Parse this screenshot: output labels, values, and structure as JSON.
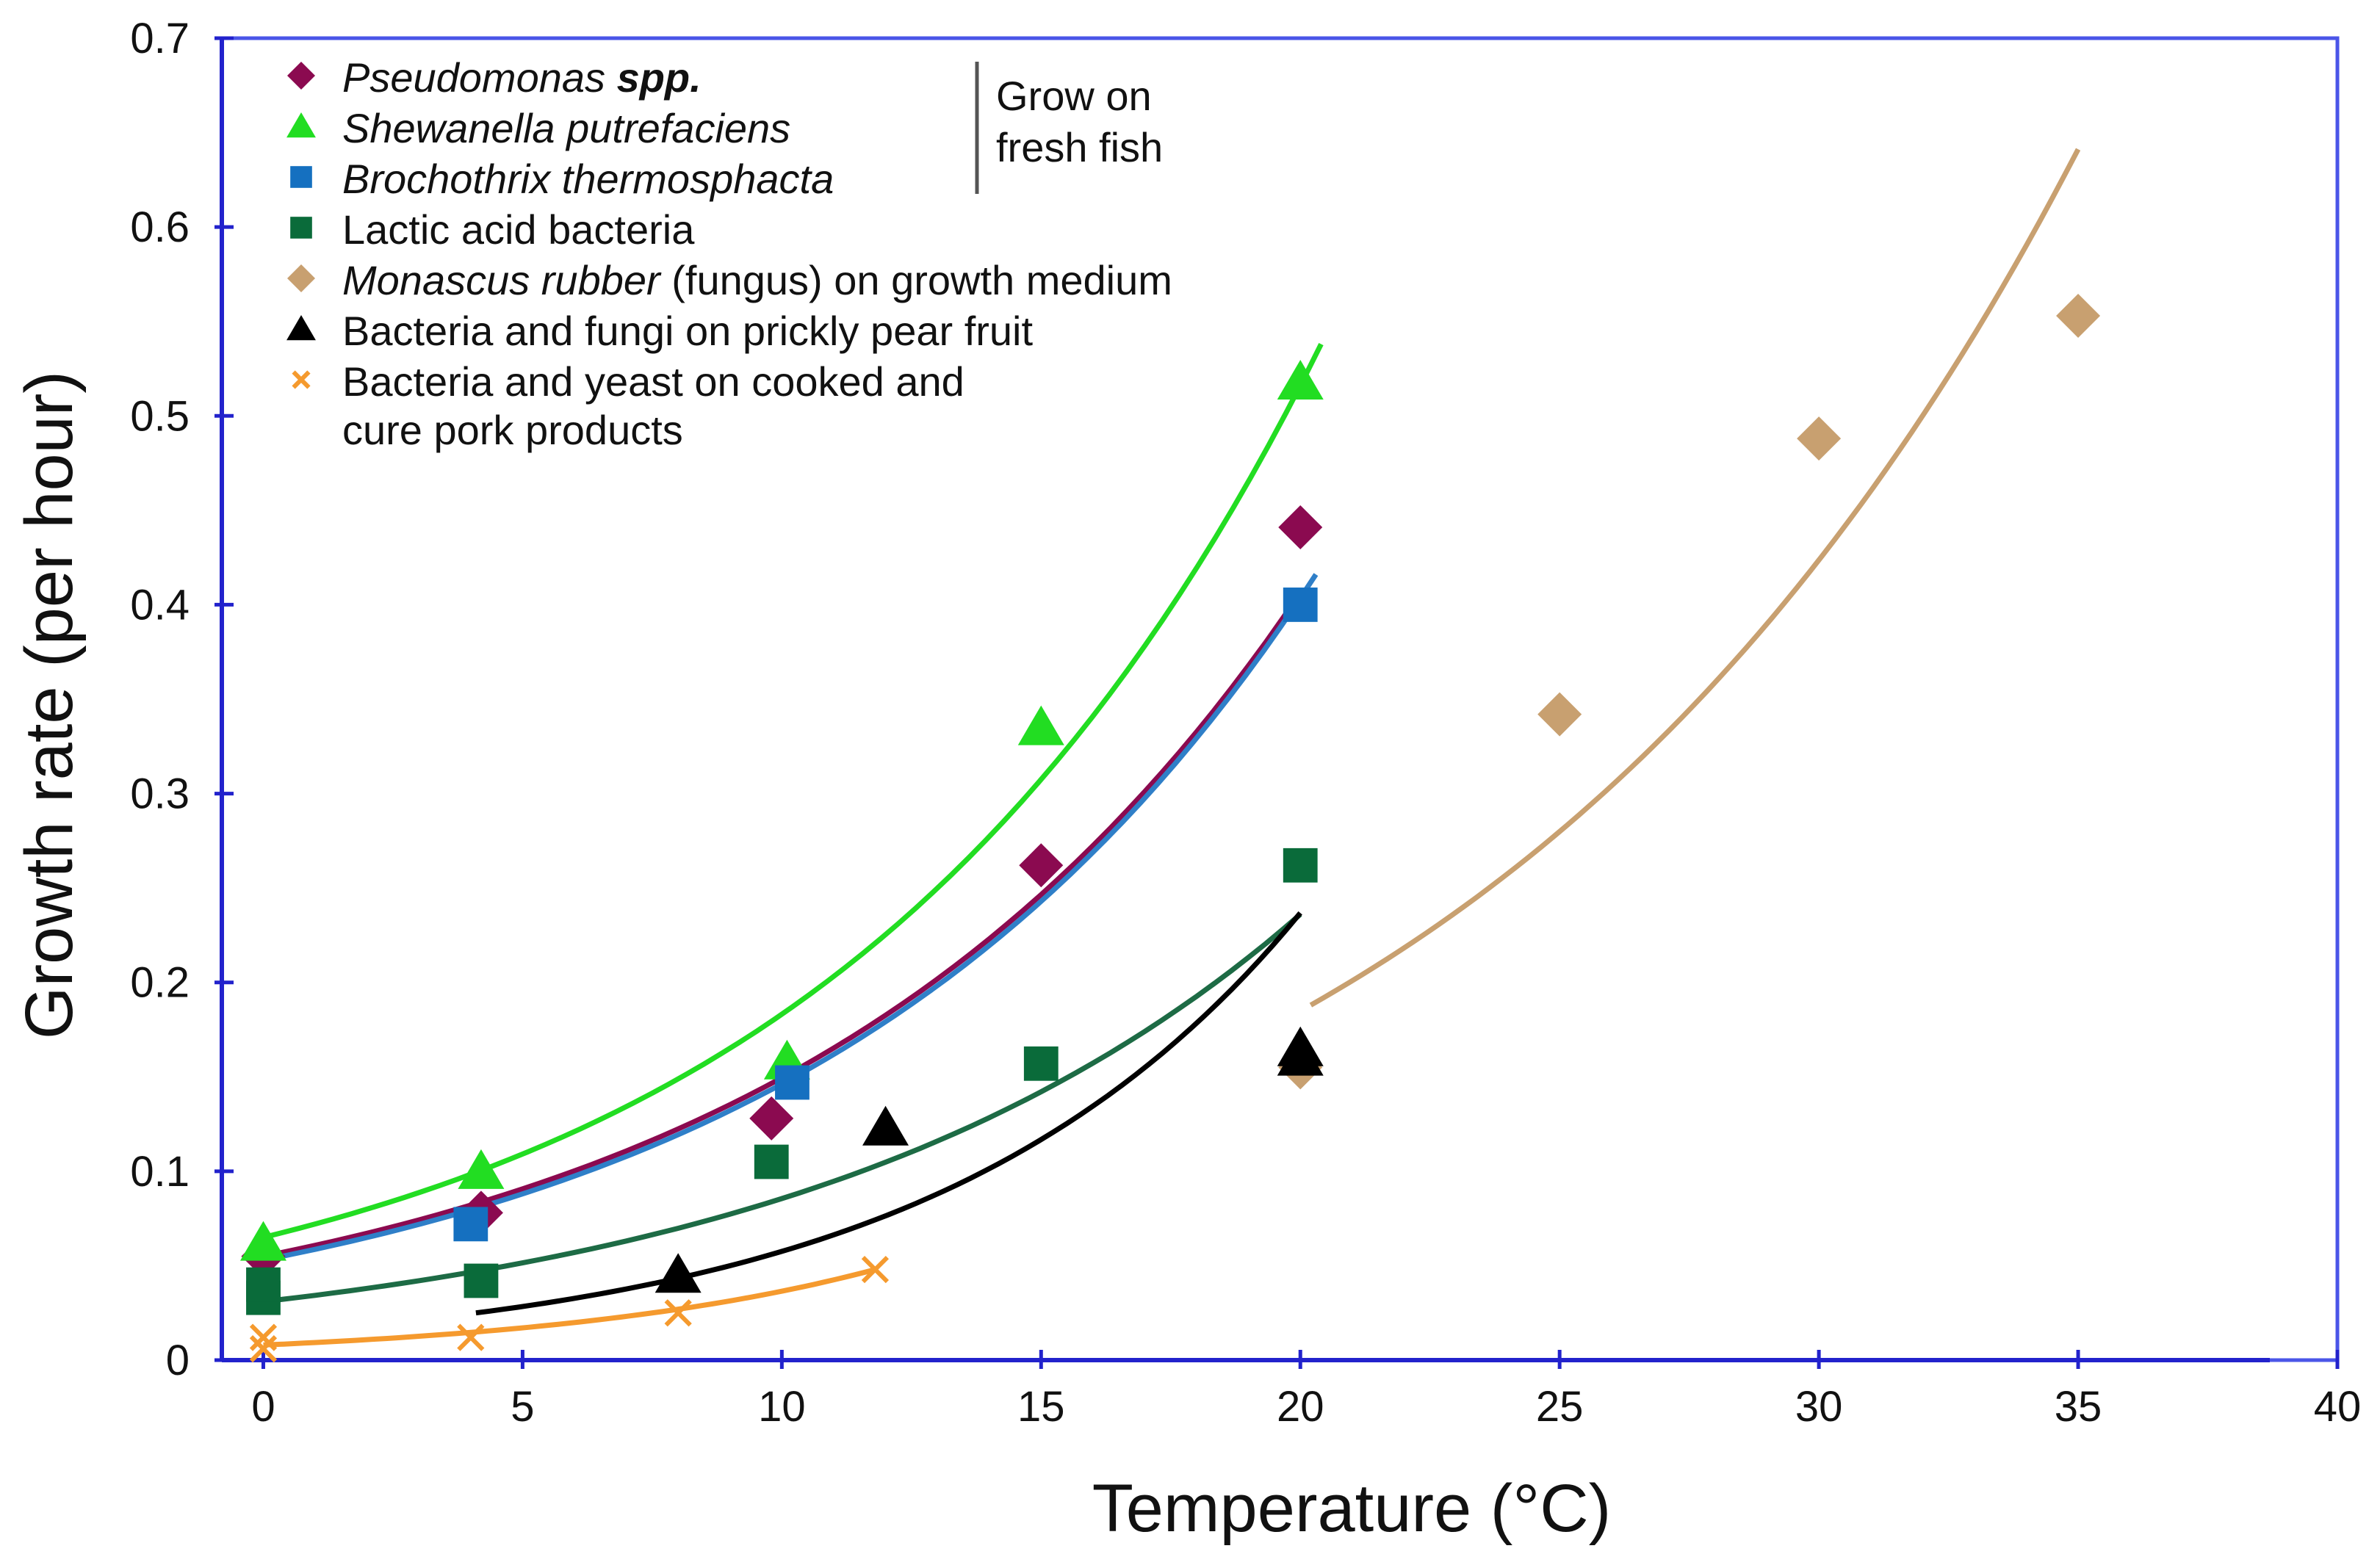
{
  "chart_data": {
    "type": "scatter",
    "xlabel": "Temperature (°C)",
    "ylabel": "Growth rate (per hour)",
    "xlim": [
      -0.8,
      40
    ],
    "ylim": [
      0,
      0.7
    ],
    "xticks": [
      "0",
      "5",
      "10",
      "15",
      "20",
      "25",
      "30",
      "35",
      "40"
    ],
    "xtick_values": [
      0,
      5,
      10,
      15,
      20,
      25,
      30,
      35,
      40
    ],
    "yticks": [
      "0",
      "0.1",
      "0.2",
      "0.3",
      "0.4",
      "0.5",
      "0.6",
      "0.7"
    ],
    "ytick_values": [
      0,
      0.1,
      0.2,
      0.3,
      0.4,
      0.5,
      0.6,
      0.7
    ],
    "grid": false,
    "legend_position": "top-left",
    "legend_group_note": [
      "Grow on",
      "fresh fish"
    ],
    "series": [
      {
        "id": "pseudomonas",
        "name_parts": [
          {
            "t": "Pseudomonas ",
            "s": "it"
          },
          {
            "t": "spp.",
            "s": "bi"
          }
        ],
        "marker": "diamond",
        "color": "#8b0a50",
        "x": [
          0,
          4.2,
          9.8,
          15,
          20
        ],
        "y": [
          0.055,
          0.078,
          0.128,
          0.262,
          0.441
        ],
        "fit": {
          "from": 0,
          "to": 20,
          "a": 0.055,
          "b": 0.1
        },
        "fit_color": "#8b0a50"
      },
      {
        "id": "shewanella",
        "name_parts": [
          {
            "t": "Shewanella putrefaciens",
            "s": "it"
          }
        ],
        "marker": "triangle",
        "color": "#22dd22",
        "x": [
          0,
          4.2,
          10.1,
          15,
          20
        ],
        "y": [
          0.062,
          0.1,
          0.158,
          0.335,
          0.518
        ],
        "fit": {
          "from": 0,
          "to": 20.4,
          "a": 0.065,
          "b": 0.1036
        },
        "fit_color": "#22dd22"
      },
      {
        "id": "brochothrix",
        "name_parts": [
          {
            "t": "Brochothrix thermosphacta",
            "s": "it"
          }
        ],
        "marker": "square",
        "color": "#1570c0",
        "x": [
          4,
          10.2,
          20
        ],
        "y": [
          0.072,
          0.147,
          0.4
        ],
        "fit": {
          "from": 0,
          "to": 20.3,
          "a": 0.053,
          "b": 0.1015
        },
        "fit_color": "#2f7fc8"
      },
      {
        "id": "lactic",
        "name_parts": [
          {
            "t": "Lactic acid bacteria",
            "s": ""
          }
        ],
        "marker": "square",
        "color": "#0a6b3a",
        "x": [
          0,
          0,
          4.2,
          9.8,
          15,
          20
        ],
        "y": [
          0.033,
          0.04,
          0.042,
          0.105,
          0.157,
          0.262
        ],
        "fit": {
          "from": 0,
          "to": 20,
          "a": 0.031,
          "b": 0.1015
        },
        "fit_color": "#1d6b45"
      },
      {
        "id": "monascus",
        "name_parts": [
          {
            "t": "Monascus rubber",
            "s": "it"
          },
          {
            "t": " (fungus) on growth medium",
            "s": ""
          }
        ],
        "marker": "diamond",
        "color": "#c8a070",
        "x": [
          20,
          25,
          30,
          35
        ],
        "y": [
          0.155,
          0.342,
          0.488,
          0.553
        ],
        "fit": {
          "from": 20.2,
          "to": 35,
          "a": 0.188,
          "b": 0.0829,
          "x0": 20.2
        },
        "fit_color": "#c8a070"
      },
      {
        "id": "prickly",
        "name_parts": [
          {
            "t": "Bacteria and fungi on prickly pear fruit",
            "s": ""
          }
        ],
        "marker": "triangle",
        "color": "#000000",
        "x": [
          8,
          12,
          20,
          20
        ],
        "y": [
          0.045,
          0.123,
          0.16,
          0.165
        ],
        "fit": {
          "from": 4.1,
          "to": 20,
          "a": 0.025,
          "b": 0.1414,
          "x0": 4.1
        },
        "fit_color": "#000000"
      },
      {
        "id": "pork",
        "name_parts": [
          {
            "t": "Bacteria and yeast on cooked and",
            "s": ""
          }
        ],
        "name_line2": "cure pork products",
        "marker": "cross",
        "color": "#f59a2e",
        "x": [
          0,
          0,
          4,
          8,
          11.8
        ],
        "y": [
          0.006,
          0.012,
          0.012,
          0.025,
          0.048
        ],
        "fit": {
          "from": 0,
          "to": 11.8,
          "a": 0.008,
          "b": 0.1518
        },
        "fit_color": "#f59a2e"
      }
    ]
  }
}
